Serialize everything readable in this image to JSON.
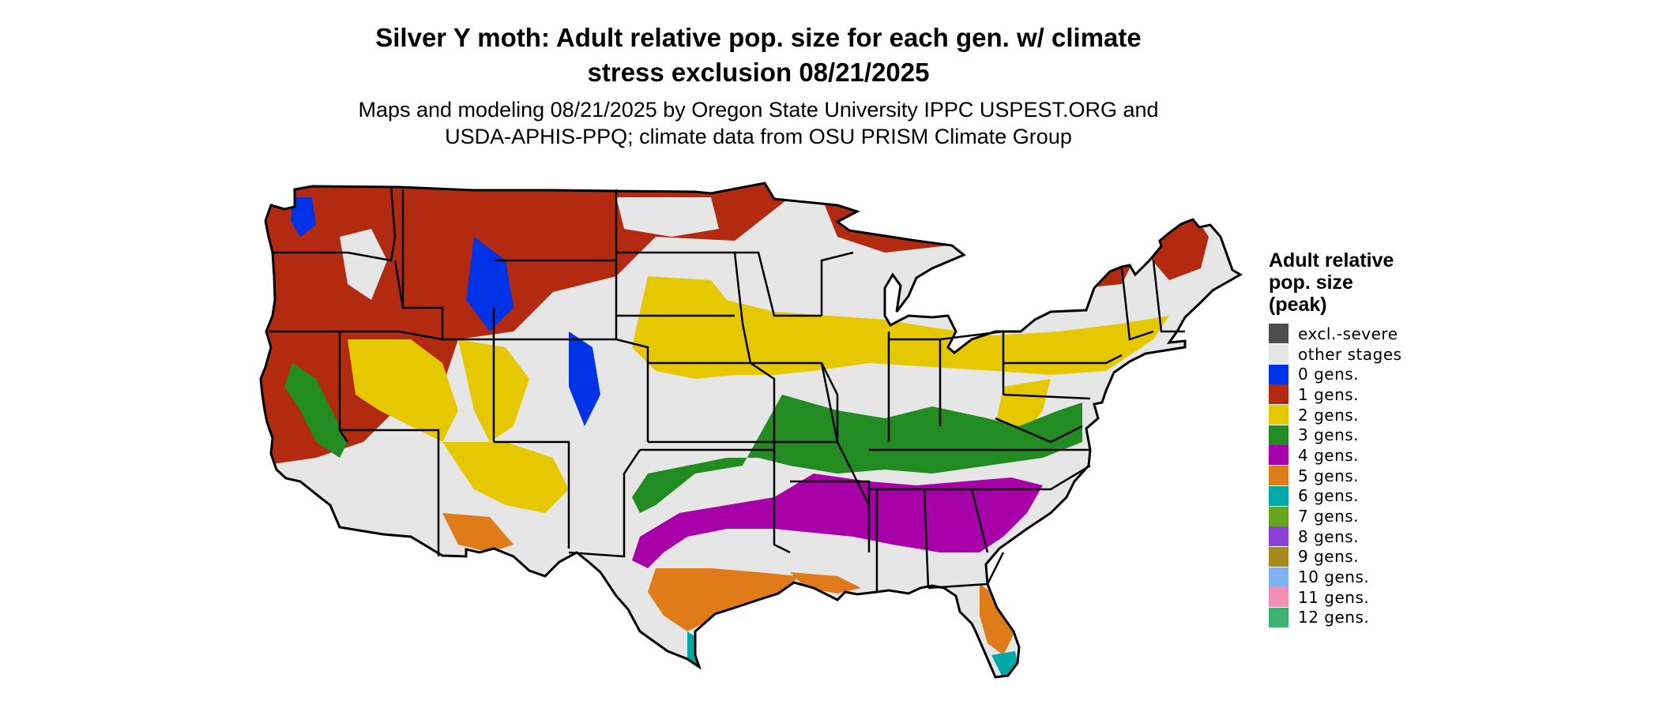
{
  "map": {
    "title_lines": [
      "Silver Y moth: Adult relative pop. size for each gen. w/ climate",
      "stress exclusion 08/21/2025"
    ],
    "subtitle_lines": [
      "Maps and modeling 08/21/2025 by Oregon State University IPPC USPEST.ORG and",
      "USDA-APHIS-PPQ; climate data from OSU PRISM Climate Group"
    ],
    "region": "Contiguous United States"
  },
  "legend": {
    "title_lines": [
      "Adult relative",
      "pop. size",
      "(peak)"
    ],
    "items": [
      {
        "label": "excl.-severe",
        "color": "#4d4d4d"
      },
      {
        "label": "other stages",
        "color": "#e6e6e6"
      },
      {
        "label": "0 gens.",
        "color": "#0033e6"
      },
      {
        "label": "1 gens.",
        "color": "#b22a0f"
      },
      {
        "label": "2 gens.",
        "color": "#e6c800"
      },
      {
        "label": "3 gens.",
        "color": "#228b22"
      },
      {
        "label": "4 gens.",
        "color": "#a800a8"
      },
      {
        "label": "5 gens.",
        "color": "#e07b1a"
      },
      {
        "label": "6 gens.",
        "color": "#00a8a8"
      },
      {
        "label": "7 gens.",
        "color": "#66a61e"
      },
      {
        "label": "8 gens.",
        "color": "#8b3fd9"
      },
      {
        "label": "9 gens.",
        "color": "#a6891c"
      },
      {
        "label": "10 gens.",
        "color": "#7fb2f0"
      },
      {
        "label": "11 gens.",
        "color": "#f08fb2"
      },
      {
        "label": "12 gens.",
        "color": "#3cb371"
      }
    ]
  }
}
